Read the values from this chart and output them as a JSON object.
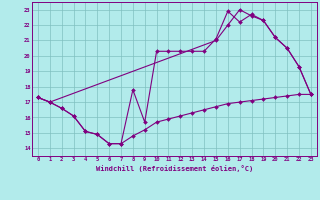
{
  "xlabel": "Windchill (Refroidissement éolien,°C)",
  "background_color": "#b2ebeb",
  "line_color": "#800080",
  "grid_color": "#80c0c0",
  "xlim": [
    -0.5,
    23.5
  ],
  "ylim": [
    13.5,
    23.5
  ],
  "xticks": [
    0,
    1,
    2,
    3,
    4,
    5,
    6,
    7,
    8,
    9,
    10,
    11,
    12,
    13,
    14,
    15,
    16,
    17,
    18,
    19,
    20,
    21,
    22,
    23
  ],
  "yticks": [
    14,
    15,
    16,
    17,
    18,
    19,
    20,
    21,
    22,
    23
  ],
  "line1_x": [
    0,
    1,
    2,
    3,
    4,
    5,
    6,
    7,
    8,
    9,
    10,
    11,
    12,
    13,
    14,
    15,
    16,
    17,
    18,
    19,
    20,
    21,
    22,
    23
  ],
  "line1_y": [
    17.3,
    17.0,
    16.6,
    16.1,
    15.1,
    14.9,
    14.3,
    14.3,
    17.8,
    15.7,
    20.3,
    20.3,
    20.3,
    20.3,
    20.3,
    21.1,
    22.9,
    22.2,
    22.7,
    22.3,
    21.2,
    20.5,
    19.3,
    17.5
  ],
  "line2_x": [
    0,
    1,
    2,
    3,
    4,
    5,
    6,
    7,
    8,
    9,
    10,
    11,
    12,
    13,
    14,
    15,
    16,
    17,
    18,
    19,
    20,
    21,
    22,
    23
  ],
  "line2_y": [
    17.3,
    17.0,
    16.6,
    16.1,
    15.1,
    14.9,
    14.3,
    14.3,
    14.8,
    15.2,
    15.7,
    15.9,
    16.1,
    16.3,
    16.5,
    16.7,
    16.9,
    17.0,
    17.1,
    17.2,
    17.3,
    17.4,
    17.5,
    17.5
  ],
  "line3_x": [
    0,
    1,
    15,
    16,
    17,
    18,
    19,
    20,
    21,
    22,
    23
  ],
  "line3_y": [
    17.3,
    17.0,
    21.0,
    22.0,
    23.0,
    22.6,
    22.3,
    21.2,
    20.5,
    19.3,
    17.5
  ]
}
